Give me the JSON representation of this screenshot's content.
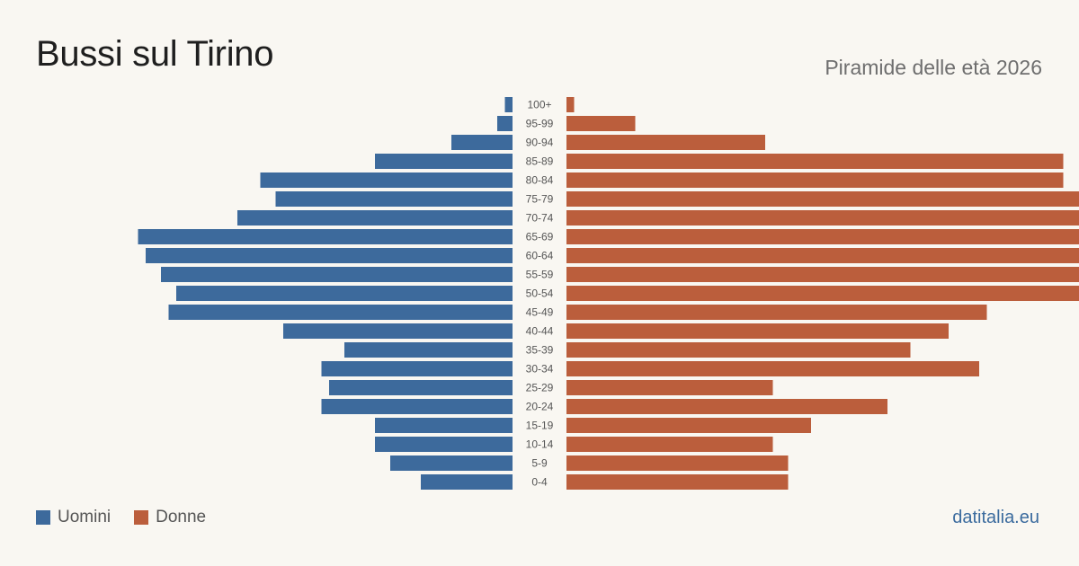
{
  "header": {
    "title": "Bussi sul Tirino",
    "subtitle": "Piramide delle età 2026"
  },
  "legend": {
    "men_label": "Uomini",
    "women_label": "Donne"
  },
  "brand": "datitalia.eu",
  "colors": {
    "men": "#3d6a9c",
    "women": "#bb5e3c",
    "background": "#f9f7f2",
    "label": "#555555"
  },
  "chart_data": {
    "type": "bar",
    "orientation": "horizontal-pyramid",
    "categories": [
      "100+",
      "95-99",
      "90-94",
      "85-89",
      "80-84",
      "75-79",
      "70-74",
      "65-69",
      "60-64",
      "55-59",
      "50-54",
      "45-49",
      "40-44",
      "35-39",
      "30-34",
      "25-29",
      "20-24",
      "15-19",
      "10-14",
      "5-9",
      "0-4"
    ],
    "series": [
      {
        "name": "Uomini",
        "values": [
          1,
          2,
          8,
          18,
          33,
          31,
          36,
          49,
          48,
          46,
          44,
          45,
          30,
          22,
          25,
          24,
          25,
          18,
          18,
          16,
          12
        ]
      },
      {
        "name": "Donne",
        "values": [
          1,
          9,
          26,
          65,
          65,
          89,
          89,
          76,
          101,
          99,
          89,
          55,
          50,
          45,
          54,
          27,
          42,
          32,
          27,
          29,
          29
        ]
      }
    ],
    "grid": false,
    "legend_position": "bottom-left"
  }
}
